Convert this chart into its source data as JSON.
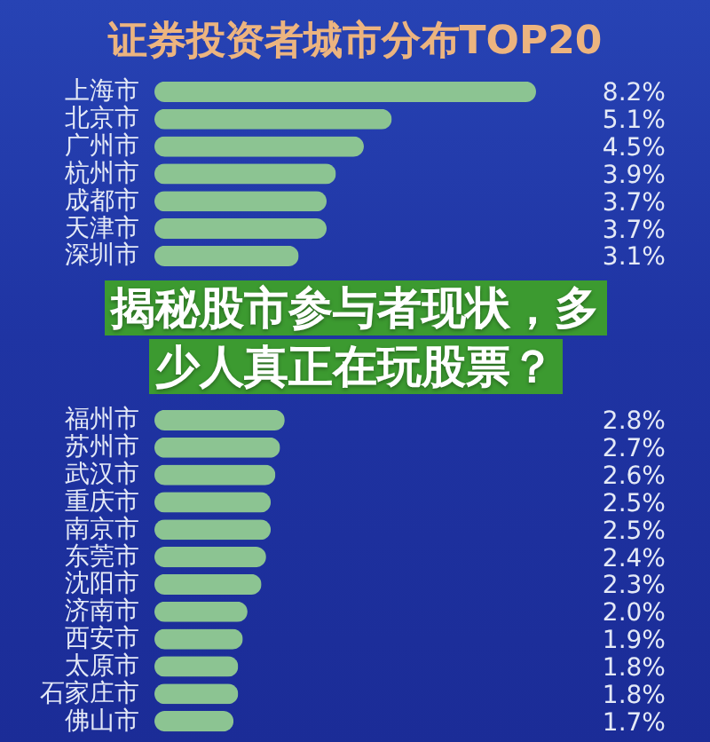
{
  "chart_data": {
    "type": "bar",
    "orientation": "horizontal",
    "title": "证券投资者城市分布TOP20",
    "categories": [
      "上海市",
      "北京市",
      "广州市",
      "杭州市",
      "成都市",
      "天津市",
      "深圳市",
      null,
      "福州市",
      "苏州市",
      "武汉市",
      "重庆市",
      "南京市",
      "东莞市",
      "沈阳市",
      "济南市",
      "西安市",
      "太原市",
      "石家庄市",
      "佛山市"
    ],
    "values": [
      8.2,
      5.1,
      4.5,
      3.9,
      3.7,
      3.7,
      3.1,
      null,
      2.8,
      2.7,
      2.6,
      2.5,
      2.5,
      2.4,
      2.3,
      2.0,
      1.9,
      1.8,
      1.8,
      1.7
    ],
    "value_labels": [
      "8.2%",
      "5.1%",
      "4.5%",
      "3.9%",
      "3.7%",
      "3.7%",
      "3.1%",
      null,
      "2.8%",
      "2.7%",
      "2.6%",
      "2.5%",
      "2.5%",
      "2.4%",
      "2.3%",
      "2.0%",
      "1.9%",
      "1.8%",
      "1.8%",
      "1.7%"
    ],
    "color": "#8cc492",
    "tick_labels": "y",
    "annotations": [
      "揭秘股市参与者现状，多少人真正在玩股票？"
    ]
  }
}
